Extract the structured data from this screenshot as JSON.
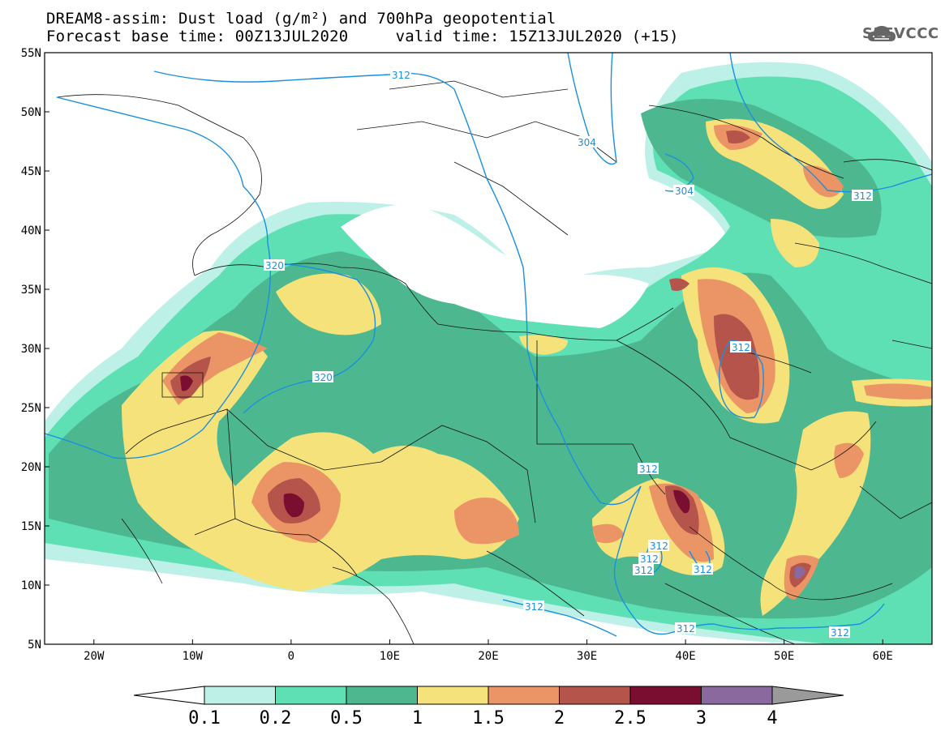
{
  "header": {
    "title_line1": "DREAM8-assim: Dust load (g/m²) and 700hPa geopotential",
    "title_line2": "Forecast base time: 00Z13JUL2020     valid time: 15Z13JUL2020 (+15)"
  },
  "logo": {
    "text": "SEEVCCC",
    "icon": "cloud-logo-icon",
    "color": "#666666"
  },
  "axes": {
    "lat_labels": [
      "55N",
      "50N",
      "45N",
      "40N",
      "35N",
      "30N",
      "25N",
      "20N",
      "15N",
      "10N",
      "5N"
    ],
    "lon_labels": [
      "20W",
      "10W",
      "0",
      "10E",
      "20E",
      "30E",
      "40E",
      "50E",
      "60E"
    ],
    "lat_range": [
      5,
      55
    ],
    "lon_range": [
      -25,
      65
    ]
  },
  "colorbar": {
    "labels": [
      "0.1",
      "0.2",
      "0.5",
      "1",
      "1.5",
      "2",
      "2.5",
      "3",
      "4"
    ],
    "colors": [
      "#ffffff",
      "#bdf0e6",
      "#5fe0b4",
      "#4db890",
      "#f5e27a",
      "#eb9466",
      "#b5544a",
      "#7a0e30",
      "#8a6a9e",
      "#9a9a9a"
    ]
  },
  "contours": {
    "color": "#1a8fe0",
    "labels": [
      "312",
      "304",
      "304",
      "312",
      "320",
      "320",
      "312",
      "312",
      "312",
      "312",
      "312",
      "312",
      "312",
      "312",
      "312"
    ]
  }
}
